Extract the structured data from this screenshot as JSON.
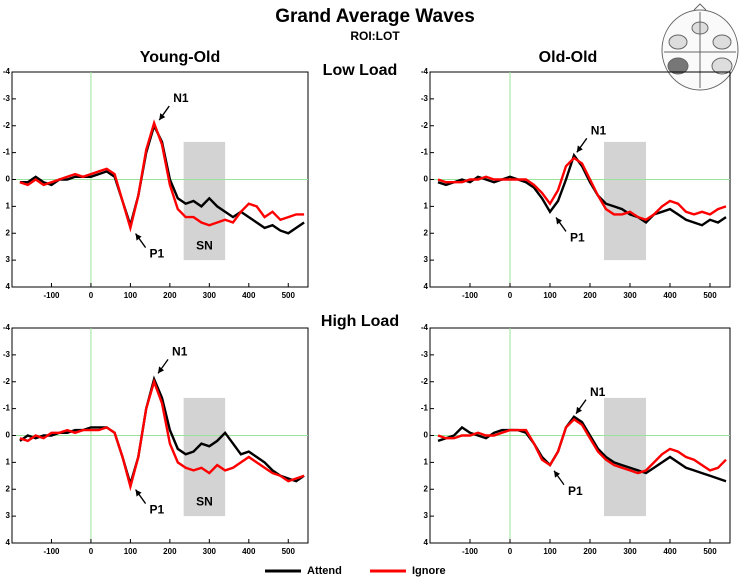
{
  "title": "Grand Average Waves",
  "subtitle": "ROI:LOT",
  "column_titles": [
    "Young-Old",
    "Old-Old"
  ],
  "row_titles": [
    "Low Load",
    "High Load"
  ],
  "chart_data": [
    {
      "type": "line",
      "xlim": [
        -200,
        550
      ],
      "ylim": [
        4,
        -4
      ],
      "xticks": [
        -100,
        0,
        100,
        200,
        300,
        400,
        500
      ],
      "yticks": [
        -4,
        -3,
        -2,
        -1,
        0,
        1,
        2,
        3,
        4
      ],
      "x": [
        -180,
        -160,
        -140,
        -120,
        -100,
        -80,
        -60,
        -40,
        -20,
        0,
        20,
        40,
        60,
        80,
        100,
        120,
        140,
        160,
        180,
        200,
        220,
        240,
        260,
        280,
        300,
        320,
        340,
        360,
        380,
        400,
        420,
        440,
        460,
        480,
        500,
        520,
        540
      ],
      "series": [
        {
          "name": "Attend",
          "color": "#000000",
          "values": [
            0.1,
            0.1,
            -0.1,
            0.1,
            0.2,
            0,
            0,
            -0.1,
            -0.1,
            -0.1,
            -0.2,
            -0.3,
            -0.1,
            0.8,
            1.7,
            0.6,
            -1.0,
            -2.0,
            -1.4,
            0,
            0.7,
            0.9,
            0.8,
            1.0,
            0.7,
            1.0,
            1.2,
            1.4,
            1.2,
            1.4,
            1.6,
            1.8,
            1.7,
            1.9,
            2.0,
            1.8,
            1.6
          ]
        },
        {
          "name": "Ignore",
          "color": "#ff0000",
          "values": [
            0.1,
            0.2,
            0,
            0.2,
            0.1,
            0,
            -0.1,
            -0.2,
            -0.1,
            -0.2,
            -0.3,
            -0.4,
            -0.2,
            0.8,
            1.8,
            0.6,
            -1.1,
            -2.1,
            -1.3,
            0.2,
            1.1,
            1.4,
            1.4,
            1.6,
            1.7,
            1.6,
            1.5,
            1.6,
            1.2,
            0.9,
            1.0,
            1.4,
            1.2,
            1.5,
            1.4,
            1.3,
            1.3
          ]
        }
      ],
      "shade": {
        "x": [
          235,
          340
        ],
        "y": [
          -1.4,
          3
        ],
        "label": "SN"
      },
      "annotations": [
        {
          "text": "N1",
          "x": 168,
          "y": -2.1
        },
        {
          "text": "P1",
          "x": 108,
          "y": 1.9
        }
      ]
    },
    {
      "type": "line",
      "xlim": [
        -200,
        550
      ],
      "ylim": [
        4,
        -4
      ],
      "xticks": [
        -100,
        0,
        100,
        200,
        300,
        400,
        500
      ],
      "yticks": [
        -4,
        -3,
        -2,
        -1,
        0,
        1,
        2,
        3,
        4
      ],
      "x": [
        -180,
        -160,
        -140,
        -120,
        -100,
        -80,
        -60,
        -40,
        -20,
        0,
        20,
        40,
        60,
        80,
        100,
        120,
        140,
        160,
        180,
        200,
        220,
        240,
        260,
        280,
        300,
        320,
        340,
        360,
        380,
        400,
        420,
        440,
        460,
        480,
        500,
        520,
        540
      ],
      "series": [
        {
          "name": "Attend",
          "color": "#000000",
          "values": [
            0.1,
            0.2,
            0.1,
            0,
            0.1,
            -0.1,
            0,
            0.1,
            0,
            -0.1,
            0,
            0.1,
            0.3,
            0.7,
            1.2,
            0.8,
            0,
            -0.9,
            -0.5,
            0.1,
            0.6,
            0.9,
            1.0,
            1.1,
            1.3,
            1.4,
            1.6,
            1.3,
            1.2,
            1.1,
            1.3,
            1.5,
            1.6,
            1.7,
            1.5,
            1.6,
            1.4
          ]
        },
        {
          "name": "Ignore",
          "color": "#ff0000",
          "values": [
            0,
            0.1,
            0.1,
            0.1,
            0,
            0,
            -0.1,
            0,
            0,
            0,
            0,
            0,
            0.2,
            0.5,
            0.9,
            0.4,
            -0.5,
            -0.8,
            -0.6,
            0,
            0.6,
            1.1,
            1.3,
            1.3,
            1.2,
            1.4,
            1.5,
            1.3,
            1.0,
            0.8,
            0.9,
            1.2,
            1.3,
            1.2,
            1.3,
            1.1,
            1.0
          ]
        }
      ],
      "shade": {
        "x": [
          235,
          340
        ],
        "y": [
          -1.4,
          3
        ]
      },
      "annotations": [
        {
          "text": "N1",
          "x": 162,
          "y": -0.9
        },
        {
          "text": "P1",
          "x": 110,
          "y": 1.3
        }
      ]
    },
    {
      "type": "line",
      "xlim": [
        -200,
        550
      ],
      "ylim": [
        4,
        -4
      ],
      "xticks": [
        -100,
        0,
        100,
        200,
        300,
        400,
        500
      ],
      "yticks": [
        -4,
        -3,
        -2,
        -1,
        0,
        1,
        2,
        3,
        4
      ],
      "x": [
        -180,
        -160,
        -140,
        -120,
        -100,
        -80,
        -60,
        -40,
        -20,
        0,
        20,
        40,
        60,
        80,
        100,
        120,
        140,
        160,
        180,
        200,
        220,
        240,
        260,
        280,
        300,
        320,
        340,
        360,
        380,
        400,
        420,
        440,
        460,
        480,
        500,
        520,
        540
      ],
      "series": [
        {
          "name": "Attend",
          "color": "#000000",
          "values": [
            0.2,
            0,
            0.1,
            0,
            0,
            -0.1,
            -0.1,
            -0.2,
            -0.2,
            -0.3,
            -0.3,
            -0.3,
            -0.1,
            0.8,
            1.8,
            0.8,
            -1.0,
            -2.1,
            -1.4,
            -0.2,
            0.5,
            0.7,
            0.6,
            0.3,
            0.4,
            0.2,
            -0.1,
            0.3,
            0.7,
            0.6,
            0.8,
            1.0,
            1.3,
            1.5,
            1.6,
            1.7,
            1.5
          ]
        },
        {
          "name": "Ignore",
          "color": "#ff0000",
          "values": [
            0.1,
            0.2,
            0,
            0.1,
            -0.1,
            -0.1,
            -0.2,
            -0.1,
            -0.2,
            -0.2,
            -0.2,
            -0.3,
            -0.1,
            0.8,
            1.9,
            0.8,
            -1.0,
            -2.0,
            -1.2,
            0.3,
            1.0,
            1.2,
            1.3,
            1.2,
            1.4,
            1.1,
            1.3,
            1.2,
            1.0,
            0.8,
            1.0,
            1.2,
            1.4,
            1.5,
            1.7,
            1.6,
            1.5
          ]
        }
      ],
      "shade": {
        "x": [
          235,
          340
        ],
        "y": [
          -1.4,
          3
        ],
        "label": "SN"
      },
      "annotations": [
        {
          "text": "N1",
          "x": 165,
          "y": -2.2
        },
        {
          "text": "P1",
          "x": 108,
          "y": 1.9
        }
      ]
    },
    {
      "type": "line",
      "xlim": [
        -200,
        550
      ],
      "ylim": [
        4,
        -4
      ],
      "xticks": [
        -100,
        0,
        100,
        200,
        300,
        400,
        500
      ],
      "yticks": [
        -4,
        -3,
        -2,
        -1,
        0,
        1,
        2,
        3,
        4
      ],
      "x": [
        -180,
        -160,
        -140,
        -120,
        -100,
        -80,
        -60,
        -40,
        -20,
        0,
        20,
        40,
        60,
        80,
        100,
        120,
        140,
        160,
        180,
        200,
        220,
        240,
        260,
        280,
        300,
        320,
        340,
        360,
        380,
        400,
        420,
        440,
        460,
        480,
        500,
        520,
        540
      ],
      "series": [
        {
          "name": "Attend",
          "color": "#000000",
          "values": [
            0.2,
            0.1,
            0,
            -0.3,
            -0.1,
            0,
            0.1,
            -0.1,
            -0.2,
            -0.2,
            -0.2,
            -0.1,
            0.3,
            0.8,
            1.1,
            0.6,
            -0.3,
            -0.7,
            -0.5,
            0,
            0.5,
            0.8,
            1.0,
            1.1,
            1.2,
            1.3,
            1.4,
            1.2,
            1.0,
            0.8,
            1.0,
            1.2,
            1.3,
            1.4,
            1.5,
            1.6,
            1.7
          ]
        },
        {
          "name": "Ignore",
          "color": "#ff0000",
          "values": [
            0,
            0.1,
            0.1,
            0,
            0,
            -0.1,
            0,
            0,
            -0.1,
            -0.2,
            -0.2,
            -0.2,
            0.3,
            0.9,
            1.1,
            0.6,
            -0.3,
            -0.6,
            -0.4,
            0.1,
            0.6,
            0.9,
            1.1,
            1.2,
            1.3,
            1.4,
            1.3,
            1.0,
            0.7,
            0.5,
            0.6,
            0.8,
            0.9,
            1.1,
            1.3,
            1.2,
            0.9
          ]
        }
      ],
      "shade": {
        "x": [
          235,
          340
        ],
        "y": [
          -1.4,
          3
        ]
      },
      "annotations": [
        {
          "text": "N1",
          "x": 160,
          "y": -0.7
        },
        {
          "text": "P1",
          "x": 105,
          "y": 1.2
        }
      ]
    }
  ]
}
